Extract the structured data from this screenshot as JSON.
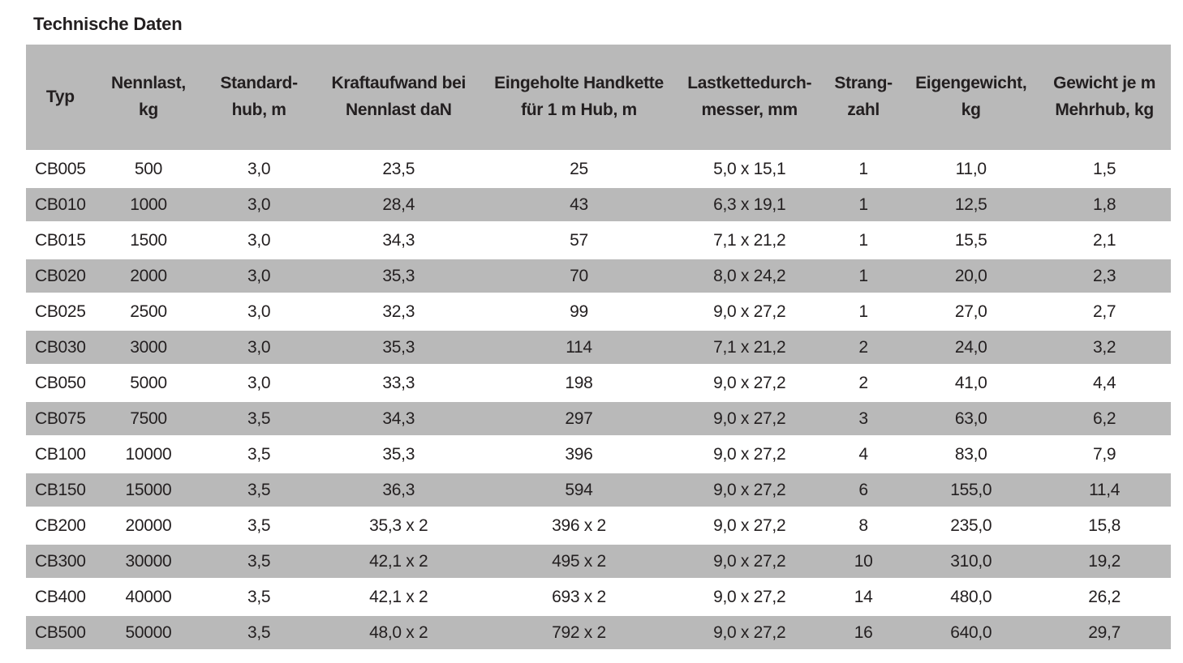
{
  "page": {
    "title": "Technische Daten"
  },
  "table": {
    "columns": [
      {
        "label": "Typ"
      },
      {
        "label": "Nennlast,\nkg"
      },
      {
        "label": "Standard-\nhub, m"
      },
      {
        "label": "Kraftaufwand bei\nNennlast daN"
      },
      {
        "label": "Eingeholte Handkette\nfür 1 m Hub, m"
      },
      {
        "label": "Lastkettedurch-\nmesser, mm"
      },
      {
        "label": "Strang-\nzahl"
      },
      {
        "label": "Eigengewicht,\nkg"
      },
      {
        "label": "Gewicht je m\nMehrhub, kg"
      }
    ],
    "rows": [
      [
        "CB005",
        "500",
        "3,0",
        "23,5",
        "25",
        "5,0 x 15,1",
        "1",
        "11,0",
        "1,5"
      ],
      [
        "CB010",
        "1000",
        "3,0",
        "28,4",
        "43",
        "6,3 x 19,1",
        "1",
        "12,5",
        "1,8"
      ],
      [
        "CB015",
        "1500",
        "3,0",
        "34,3",
        "57",
        "7,1 x 21,2",
        "1",
        "15,5",
        "2,1"
      ],
      [
        "CB020",
        "2000",
        "3,0",
        "35,3",
        "70",
        "8,0 x 24,2",
        "1",
        "20,0",
        "2,3"
      ],
      [
        "CB025",
        "2500",
        "3,0",
        "32,3",
        "99",
        "9,0 x 27,2",
        "1",
        "27,0",
        "2,7"
      ],
      [
        "CB030",
        "3000",
        "3,0",
        "35,3",
        "114",
        "7,1 x 21,2",
        "2",
        "24,0",
        "3,2"
      ],
      [
        "CB050",
        "5000",
        "3,0",
        "33,3",
        "198",
        "9,0 x 27,2",
        "2",
        "41,0",
        "4,4"
      ],
      [
        "CB075",
        "7500",
        "3,5",
        "34,3",
        "297",
        "9,0 x 27,2",
        "3",
        "63,0",
        "6,2"
      ],
      [
        "CB100",
        "10000",
        "3,5",
        "35,3",
        "396",
        "9,0 x 27,2",
        "4",
        "83,0",
        "7,9"
      ],
      [
        "CB150",
        "15000",
        "3,5",
        "36,3",
        "594",
        "9,0 x 27,2",
        "6",
        "155,0",
        "11,4"
      ],
      [
        "CB200",
        "20000",
        "3,5",
        "35,3 x 2",
        "396 x 2",
        "9,0 x 27,2",
        "8",
        "235,0",
        "15,8"
      ],
      [
        "CB300",
        "30000",
        "3,5",
        "42,1 x 2",
        "495 x 2",
        "9,0 x 27,2",
        "10",
        "310,0",
        "19,2"
      ],
      [
        "CB400",
        "40000",
        "3,5",
        "42,1 x 2",
        "693 x 2",
        "9,0 x 27,2",
        "14",
        "480,0",
        "26,2"
      ],
      [
        "CB500",
        "50000",
        "3,5",
        "48,0 x 2",
        "792 x 2",
        "9,0 x 27,2",
        "16",
        "640,0",
        "29,7"
      ]
    ],
    "colors": {
      "band_gray": "#b9b9b9",
      "text": "#231f20",
      "background": "#ffffff"
    }
  }
}
